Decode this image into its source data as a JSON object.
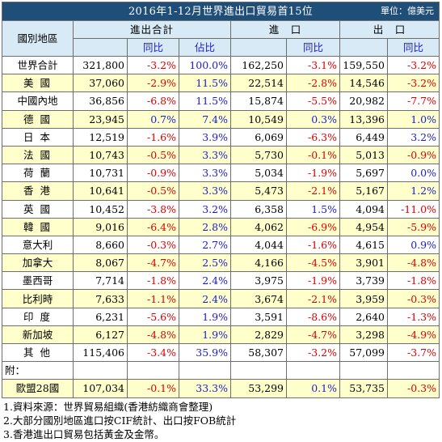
{
  "title": "2016年1-12月世界進出口貿易首15位",
  "unit": "單位：億美元",
  "headers": {
    "region": "國別地區",
    "total": "進出合計",
    "import": "進　口",
    "export": "出　口",
    "yoy": "同比",
    "share": "佔比"
  },
  "rows": [
    {
      "name": "世界合計",
      "total": "321,800",
      "total_yoy": "-3.2%",
      "share": "100.0%",
      "imp": "162,250",
      "imp_yoy": "-3.1%",
      "exp": "159,550",
      "exp_yoy": "-3.2%"
    },
    {
      "name": "美 國",
      "total": "37,060",
      "total_yoy": "-2.9%",
      "share": "11.5%",
      "imp": "22,514",
      "imp_yoy": "-2.8%",
      "exp": "14,546",
      "exp_yoy": "-3.2%"
    },
    {
      "name": "中國內地",
      "total": "36,856",
      "total_yoy": "-6.8%",
      "share": "11.5%",
      "imp": "15,874",
      "imp_yoy": "-5.5%",
      "exp": "20,982",
      "exp_yoy": "-7.7%"
    },
    {
      "name": "德 國",
      "total": "23,945",
      "total_yoy": "0.7%",
      "share": "7.4%",
      "imp": "10,549",
      "imp_yoy": "0.3%",
      "exp": "13,396",
      "exp_yoy": "1.0%"
    },
    {
      "name": "日 本",
      "total": "12,519",
      "total_yoy": "-1.6%",
      "share": "3.9%",
      "imp": "6,069",
      "imp_yoy": "-6.3%",
      "exp": "6,449",
      "exp_yoy": "3.2%"
    },
    {
      "name": "法 國",
      "total": "10,743",
      "total_yoy": "-0.5%",
      "share": "3.3%",
      "imp": "5,730",
      "imp_yoy": "-0.1%",
      "exp": "5,013",
      "exp_yoy": "-0.9%"
    },
    {
      "name": "荷 蘭",
      "total": "10,731",
      "total_yoy": "-0.9%",
      "share": "3.3%",
      "imp": "5,034",
      "imp_yoy": "-1.9%",
      "exp": "5,697",
      "exp_yoy": "0.0%"
    },
    {
      "name": "香 港",
      "total": "10,641",
      "total_yoy": "-0.5%",
      "share": "3.3%",
      "imp": "5,473",
      "imp_yoy": "-2.1%",
      "exp": "5,167",
      "exp_yoy": "1.2%"
    },
    {
      "name": "英 國",
      "total": "10,452",
      "total_yoy": "-3.8%",
      "share": "3.2%",
      "imp": "6,358",
      "imp_yoy": "1.5%",
      "exp": "4,094",
      "exp_yoy": "-11.0%"
    },
    {
      "name": "韓 國",
      "total": "9,016",
      "total_yoy": "-6.4%",
      "share": "2.8%",
      "imp": "4,062",
      "imp_yoy": "-6.9%",
      "exp": "4,954",
      "exp_yoy": "-5.9%"
    },
    {
      "name": "意大利",
      "total": "8,660",
      "total_yoy": "-0.3%",
      "share": "2.7%",
      "imp": "4,044",
      "imp_yoy": "-1.6%",
      "exp": "4,615",
      "exp_yoy": "0.9%"
    },
    {
      "name": "加拿大",
      "total": "8,067",
      "total_yoy": "-4.7%",
      "share": "2.5%",
      "imp": "4,166",
      "imp_yoy": "-4.5%",
      "exp": "3,901",
      "exp_yoy": "-4.8%"
    },
    {
      "name": "墨西哥",
      "total": "7,714",
      "total_yoy": "-1.8%",
      "share": "2.4%",
      "imp": "3,975",
      "imp_yoy": "-1.9%",
      "exp": "3,739",
      "exp_yoy": "-1.8%"
    },
    {
      "name": "比利時",
      "total": "7,633",
      "total_yoy": "-1.1%",
      "share": "2.4%",
      "imp": "3,674",
      "imp_yoy": "-2.1%",
      "exp": "3,959",
      "exp_yoy": "-0.3%"
    },
    {
      "name": "印 度",
      "total": "6,231",
      "total_yoy": "-5.6%",
      "share": "1.9%",
      "imp": "3,591",
      "imp_yoy": "-8.6%",
      "exp": "2,640",
      "exp_yoy": "-1.3%"
    },
    {
      "name": "新加坡",
      "total": "6,127",
      "total_yoy": "-4.8%",
      "share": "1.9%",
      "imp": "2,829",
      "imp_yoy": "-4.7%",
      "exp": "3,298",
      "exp_yoy": "-4.9%"
    },
    {
      "name": "其 他",
      "total": "115,406",
      "total_yoy": "-3.4%",
      "share": "35.9%",
      "imp": "58,307",
      "imp_yoy": "-3.2%",
      "exp": "57,099",
      "exp_yoy": "-3.7%"
    }
  ],
  "memo_label": "附：",
  "eu": {
    "name": "歐盟28國",
    "total": "107,034",
    "total_yoy": "-0.1%",
    "share": "33.3%",
    "imp": "53,299",
    "imp_yoy": "0.1%",
    "exp": "53,735",
    "exp_yoy": "-0.3%"
  },
  "notes": [
    "1.資料來源：世界貿易組織(香港紡織商會整理)",
    "2.大部分國別地區進口按CIF統計、出口按FOB統計",
    "3.香港進出口貿易包括黃金及金幣。"
  ],
  "colors": {
    "title_bg": "#1f4e79",
    "header_bg": "#d9eaf7",
    "alt_row_bg": "#ffffcc",
    "negative": "#e00000",
    "positive": "#1a1ad1"
  }
}
